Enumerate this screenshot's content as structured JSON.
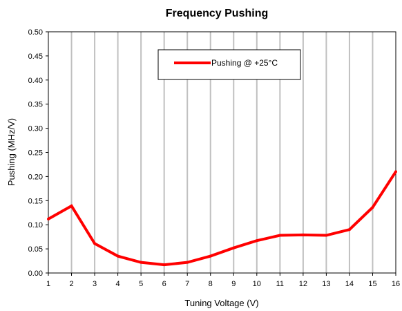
{
  "chart_data": {
    "type": "line",
    "title": "Frequency Pushing",
    "xlabel": "Tuning Voltage (V)",
    "ylabel": "Pushing (MHz/V)",
    "xlim": [
      1,
      16
    ],
    "ylim": [
      0,
      0.5
    ],
    "xticks": [
      "1",
      "2",
      "3",
      "4",
      "5",
      "6",
      "7",
      "8",
      "9",
      "10",
      "11",
      "12",
      "13",
      "14",
      "15",
      "16"
    ],
    "yticks": [
      "0.00",
      "0.05",
      "0.10",
      "0.15",
      "0.20",
      "0.25",
      "0.30",
      "0.35",
      "0.40",
      "0.45",
      "0.50"
    ],
    "grid": "vertical",
    "legend_position": "top-center",
    "series": [
      {
        "name": "Pushing @ +25°C",
        "color": "#ff0000",
        "x": [
          1,
          2,
          3,
          4,
          5,
          6,
          7,
          8,
          9,
          10,
          11,
          12,
          13,
          14,
          15,
          16
        ],
        "y": [
          0.112,
          0.139,
          0.061,
          0.035,
          0.022,
          0.017,
          0.022,
          0.035,
          0.052,
          0.067,
          0.078,
          0.079,
          0.078,
          0.09,
          0.136,
          0.21
        ]
      }
    ]
  }
}
